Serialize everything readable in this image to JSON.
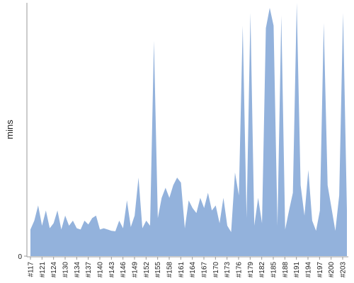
{
  "chart_data": {
    "type": "area",
    "title": "",
    "xlabel": "",
    "ylabel": "mins",
    "ylim": [
      0,
      100
    ],
    "y_ticks": [
      0
    ],
    "x_tick_labels": [
      "#117",
      "#121",
      "#124",
      "#130",
      "#134",
      "#137",
      "#140",
      "#143",
      "#146",
      "#149",
      "#152",
      "#155",
      "#158",
      "#161",
      "#164",
      "#167",
      "#170",
      "#173",
      "#176",
      "#179",
      "#182",
      "#185",
      "#188",
      "#191",
      "#194",
      "#197",
      "#200",
      "#203"
    ],
    "series": [
      {
        "color": "#93b2dc",
        "values": [
          10.5,
          14,
          20,
          12,
          18,
          11,
          13,
          18,
          10.5,
          16,
          12,
          14,
          11,
          10.5,
          14,
          12.5,
          15,
          16,
          10.5,
          11,
          10.5,
          10,
          9.8,
          14,
          11,
          22,
          11.5,
          16,
          31,
          11,
          14,
          12,
          85,
          15,
          23,
          27,
          23,
          28,
          31,
          29,
          11,
          22,
          19,
          17,
          23,
          19,
          25,
          18,
          20,
          13,
          23,
          12,
          9.5,
          33,
          24,
          91,
          15,
          96,
          12,
          23,
          13,
          90,
          98,
          91,
          12,
          95,
          10.5,
          18,
          25,
          100,
          28,
          16,
          34,
          14,
          10,
          18,
          92,
          28,
          19,
          10,
          24,
          96,
          18
        ]
      }
    ],
    "grid": false,
    "legend": "none"
  }
}
